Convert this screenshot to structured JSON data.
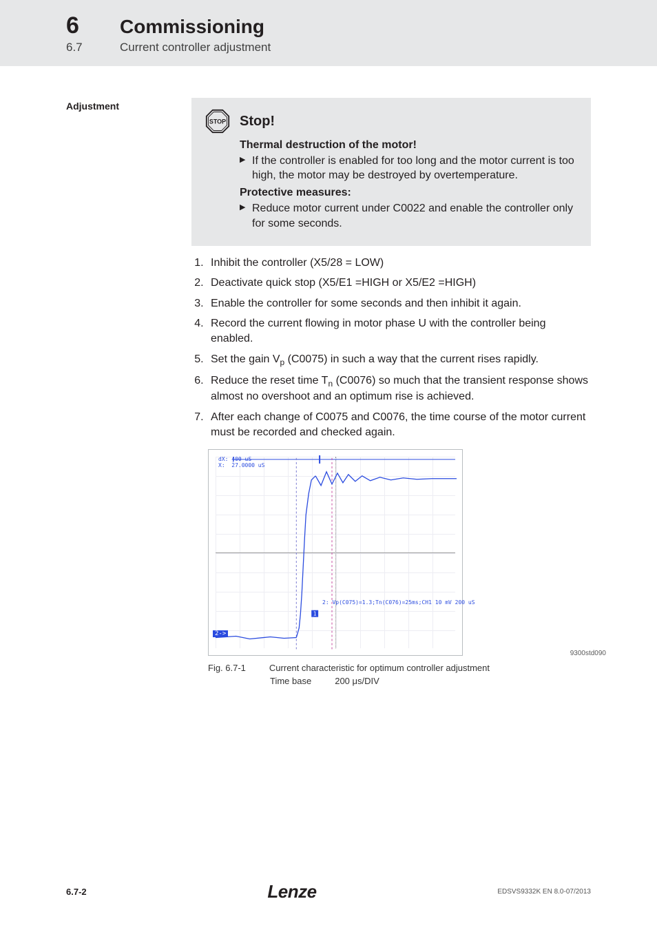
{
  "header": {
    "chapter_num": "6",
    "chapter_title": "Commissioning",
    "section_num": "6.7",
    "section_title": "Current controller adjustment"
  },
  "left_label": "Adjustment",
  "stop": {
    "title": "Stop!",
    "subtitle": "Thermal destruction of the motor!",
    "bullet1": "If the controller is enabled for too long and the motor current is too high, the motor may be destroyed by overtemperature.",
    "protective_heading": "Protective measures:",
    "protective_bullet": "Reduce motor current under C0022 and enable the controller only for some seconds."
  },
  "steps": {
    "s1": "Inhibit the controller (X5/28 = LOW)",
    "s2": "Deactivate quick stop (X5/E1 =HIGH or X5/E2 =HIGH)",
    "s3": "Enable the controller for some seconds and then inhibit it again.",
    "s4": "Record the current flowing in motor phase U with the controller being enabled.",
    "s5a": "Set the gain V",
    "s5b": " (C0075) in such a way that the current rises rapidly.",
    "s6a": "Reduce the reset time  T",
    "s6b": " (C0076) so much that the transient response shows almost no overshoot and an optimum rise is achieved.",
    "s7": "After each change of C0075 and C0076, the time course of the motor current must be recorded and checked again."
  },
  "figure": {
    "side_id": "9300std090",
    "fig_num": "Fig. 6.7-1",
    "caption": "Current characteristic for optimum controller adjustment",
    "timebase_label": "Time base",
    "timebase_value": "200 μs/DIV",
    "scope_top_left": "dX: 400 uS\nX:  27.0000 uS",
    "scope_mid": "2: Vp(C075)=1.3;Tn(C076)=25ms;CH1  10 mV    200 uS",
    "scope_marker": "2->",
    "trace_color": "#2a4bdf",
    "background": "#ffffff",
    "grid_color": "#ccccdd"
  },
  "footer": {
    "page": "6.7-2",
    "logo": "Lenze",
    "doc_id": "EDSVS9332K EN 8.0-07/2013"
  }
}
